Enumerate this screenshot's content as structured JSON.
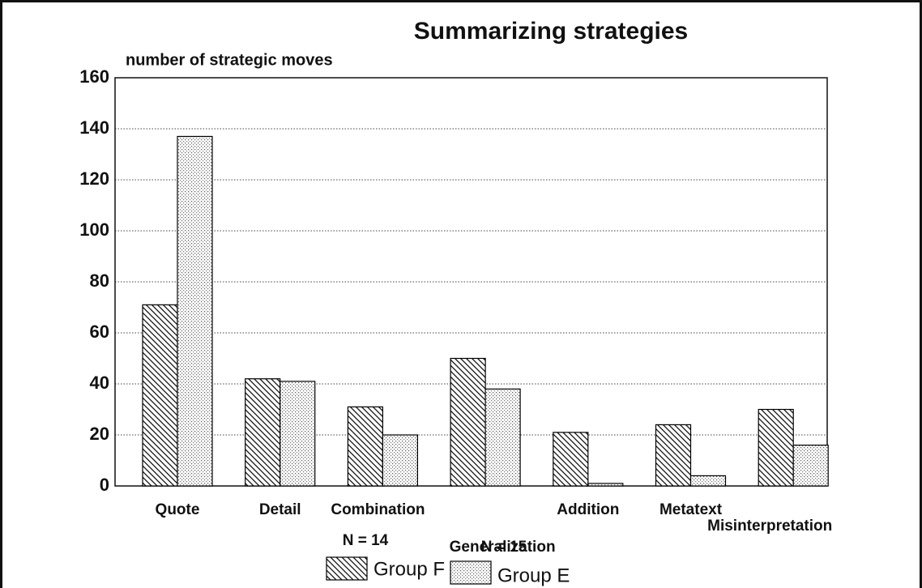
{
  "chart_data": {
    "type": "bar",
    "title": "Summarizing strategies",
    "y_label": "number of strategic moves",
    "categories": [
      "Quote",
      "Detail",
      "Combination",
      "Generalization",
      "Addition",
      "Metatext",
      "Misinterpretation"
    ],
    "series": [
      {
        "name": "Group F",
        "group_size": "N = 14",
        "color": "#000000",
        "pattern": "hatch",
        "values": [
          71,
          42,
          31,
          50,
          21,
          24,
          30
        ]
      },
      {
        "name": "Group E",
        "group_size": "N = 15",
        "color": "#000000",
        "pattern": "dots",
        "values": [
          137,
          41,
          20,
          38,
          1,
          4,
          16
        ]
      }
    ],
    "ylim": [
      0,
      160
    ],
    "yticks": [
      0,
      20,
      40,
      60,
      80,
      100,
      120,
      140,
      160
    ],
    "grid": true
  }
}
